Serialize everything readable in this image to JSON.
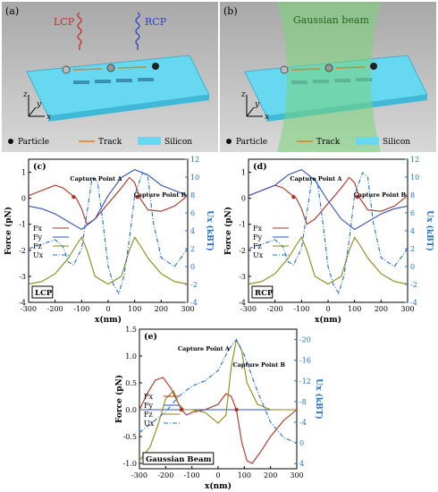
{
  "panel_a": {
    "tag": "(a)",
    "lcp_label": "LCP",
    "rcp_label": "RCP",
    "legend": {
      "particle": "Particle",
      "track": "Track",
      "silicon": "Silicon"
    },
    "axes": {
      "z": "z",
      "y": "y",
      "x": "x"
    }
  },
  "panel_b": {
    "tag": "(b)",
    "beam_label": "Gaussian beam",
    "legend": {
      "particle": "Particle",
      "track": "Track",
      "silicon": "Silicon"
    },
    "axes": {
      "z": "z",
      "y": "y",
      "x": "x"
    }
  },
  "colors": {
    "silicon": "#66d8f0",
    "fx": "#b03020",
    "fy": "#3050c0",
    "fz": "#8a8a10",
    "ux": "#2070d0",
    "lcp": "#c03030",
    "rcp": "#3040c0",
    "beam": "#7ad67a",
    "track": "#e08020"
  },
  "chart_data": [
    {
      "type": "line",
      "tag": "(c)",
      "badge": "LCP",
      "xlabel": "x(nm)",
      "ylabel": "Force (pN)",
      "y2label": "Ux (kBT)",
      "xlim": [
        -300,
        300
      ],
      "ylim": [
        -4,
        1.5
      ],
      "y2lim": [
        12,
        -4
      ],
      "xticks": [
        -300,
        -200,
        -100,
        0,
        100,
        200,
        300
      ],
      "yticks": [
        -4,
        -3,
        -2,
        -1,
        0,
        1
      ],
      "y2ticks": [
        -4,
        -2,
        0,
        2,
        4,
        6,
        8,
        10,
        12
      ],
      "annotations": [
        {
          "text": "Capture Point A",
          "x": -130,
          "y": 0.05
        },
        {
          "text": "Capture Point B",
          "x": 110,
          "y": 0.05
        }
      ],
      "series": [
        {
          "name": "Fx",
          "axis": "left",
          "x": [
            -300,
            -250,
            -200,
            -170,
            -140,
            -120,
            -100,
            -80,
            -50,
            0,
            50,
            80,
            100,
            120,
            150,
            200,
            250,
            300
          ],
          "values": [
            0.1,
            0.3,
            0.5,
            0.4,
            0.15,
            0.0,
            -0.4,
            -1.0,
            -0.8,
            -0.2,
            0.4,
            0.8,
            0.6,
            0.0,
            -0.45,
            -0.5,
            -0.3,
            0.1
          ]
        },
        {
          "name": "Fy",
          "axis": "left",
          "x": [
            -300,
            -250,
            -200,
            -150,
            -100,
            -50,
            0,
            50,
            100,
            150,
            200,
            250,
            300
          ],
          "values": [
            -0.3,
            -0.4,
            -0.6,
            -0.9,
            -1.2,
            -0.8,
            0.1,
            0.8,
            1.1,
            0.9,
            0.5,
            0.3,
            0.1
          ]
        },
        {
          "name": "Fz",
          "axis": "left",
          "x": [
            -300,
            -250,
            -200,
            -150,
            -120,
            -100,
            -80,
            -50,
            0,
            50,
            80,
            100,
            120,
            150,
            200,
            250,
            300
          ],
          "values": [
            -3.3,
            -3.2,
            -2.9,
            -2.3,
            -1.8,
            -1.5,
            -2.0,
            -3.0,
            -3.3,
            -3.0,
            -2.0,
            -1.5,
            -1.8,
            -2.3,
            -2.9,
            -3.2,
            -3.3
          ]
        },
        {
          "name": "Ux",
          "axis": "right",
          "x": [
            -300,
            -250,
            -200,
            -170,
            -150,
            -130,
            -100,
            -80,
            -60,
            -40,
            -20,
            0,
            20,
            40,
            60,
            80,
            100,
            130,
            150,
            170,
            200,
            250,
            300
          ],
          "values": [
            2,
            2.5,
            3.0,
            2.2,
            0.5,
            0.2,
            2.0,
            6.0,
            10.0,
            9.5,
            5.0,
            0.0,
            -2.0,
            -3.0,
            -1.0,
            3.0,
            8.0,
            10.5,
            10.0,
            5.0,
            1.0,
            0.0,
            2
          ]
        }
      ]
    },
    {
      "type": "line",
      "tag": "(d)",
      "badge": "RCP",
      "xlabel": "x(nm)",
      "ylabel": "Force (pN)",
      "y2label": "Ux (kBT)",
      "xlim": [
        -300,
        300
      ],
      "ylim": [
        -4,
        1.5
      ],
      "y2lim": [
        12,
        -4
      ],
      "xticks": [
        -300,
        -200,
        -100,
        0,
        100,
        200,
        300
      ],
      "yticks": [
        -4,
        -3,
        -2,
        -1,
        0,
        1
      ],
      "y2ticks": [
        -4,
        -2,
        0,
        2,
        4,
        6,
        8,
        10,
        12
      ],
      "annotations": [
        {
          "text": "Capture Point A",
          "x": -130,
          "y": 0.05
        },
        {
          "text": "Capture Point B",
          "x": 110,
          "y": 0.05
        }
      ],
      "series": [
        {
          "name": "Fx",
          "axis": "left",
          "x": [
            -300,
            -250,
            -200,
            -170,
            -140,
            -120,
            -100,
            -80,
            -50,
            0,
            50,
            80,
            100,
            120,
            150,
            200,
            250,
            300
          ],
          "values": [
            0.1,
            0.3,
            0.5,
            0.4,
            0.15,
            0.0,
            -0.4,
            -1.0,
            -0.8,
            -0.2,
            0.4,
            0.8,
            0.6,
            0.0,
            -0.45,
            -0.5,
            -0.3,
            0.1
          ]
        },
        {
          "name": "Fy",
          "axis": "left",
          "x": [
            -300,
            -250,
            -200,
            -150,
            -100,
            -50,
            0,
            50,
            100,
            150,
            200,
            250,
            300
          ],
          "values": [
            0.1,
            0.3,
            0.5,
            0.9,
            1.1,
            0.7,
            -0.1,
            -0.8,
            -1.2,
            -0.9,
            -0.6,
            -0.4,
            -0.3
          ]
        },
        {
          "name": "Fz",
          "axis": "left",
          "x": [
            -300,
            -250,
            -200,
            -150,
            -120,
            -100,
            -80,
            -50,
            0,
            50,
            80,
            100,
            120,
            150,
            200,
            250,
            300
          ],
          "values": [
            -3.3,
            -3.2,
            -2.9,
            -2.3,
            -1.8,
            -1.5,
            -2.0,
            -3.0,
            -3.3,
            -3.0,
            -2.0,
            -1.5,
            -1.8,
            -2.3,
            -2.9,
            -3.2,
            -3.3
          ]
        },
        {
          "name": "Ux",
          "axis": "right",
          "x": [
            -300,
            -250,
            -200,
            -170,
            -150,
            -130,
            -100,
            -80,
            -60,
            -40,
            -20,
            0,
            20,
            40,
            60,
            80,
            100,
            130,
            150,
            170,
            200,
            250,
            300
          ],
          "values": [
            2,
            2.5,
            3.0,
            2.2,
            0.5,
            0.2,
            2.0,
            6.0,
            10.0,
            9.5,
            5.0,
            0.0,
            -2.0,
            -3.0,
            -1.0,
            3.0,
            8.0,
            10.5,
            10.0,
            5.0,
            1.0,
            0.0,
            2
          ]
        }
      ]
    },
    {
      "type": "line",
      "tag": "(e)",
      "badge": "Gaussian Beam",
      "xlabel": "x(nm)",
      "ylabel": "Force (pN)",
      "y2label": "Ux (kBT)",
      "xlim": [
        -300,
        300
      ],
      "ylim": [
        -1.1,
        1.5
      ],
      "y2lim": [
        -22,
        5
      ],
      "xticks": [
        -300,
        -200,
        -100,
        0,
        100,
        200,
        300
      ],
      "yticks": [
        -1.0,
        -0.5,
        0.0,
        0.5,
        1.0,
        1.5
      ],
      "y2ticks": [
        -20,
        -16,
        -12,
        -8,
        -4,
        0,
        4
      ],
      "annotations": [
        {
          "text": "Capture Point A",
          "x": -140,
          "y": 0.0
        },
        {
          "text": "Capture Point B",
          "x": 70,
          "y": 0.0
        }
      ],
      "series": [
        {
          "name": "Fx",
          "axis": "left",
          "x": [
            -300,
            -270,
            -240,
            -210,
            -180,
            -150,
            -140,
            -120,
            -100,
            -50,
            0,
            30,
            50,
            70,
            90,
            110,
            130,
            160,
            200,
            250,
            300
          ],
          "values": [
            0.0,
            0.3,
            0.55,
            0.6,
            0.4,
            0.1,
            0.0,
            -0.1,
            -0.05,
            0.0,
            0.1,
            0.3,
            0.25,
            0.0,
            -0.6,
            -0.95,
            -1.0,
            -0.8,
            -0.5,
            -0.2,
            0.0
          ]
        },
        {
          "name": "Fy",
          "axis": "left",
          "x": [
            -300,
            300
          ],
          "values": [
            0.0,
            0.0
          ]
        },
        {
          "name": "Fz",
          "axis": "left",
          "x": [
            -300,
            -260,
            -230,
            -200,
            -170,
            -150,
            -130,
            -100,
            -50,
            0,
            30,
            50,
            70,
            90,
            110,
            150,
            200,
            250,
            300
          ],
          "values": [
            -0.95,
            -0.7,
            -0.3,
            0.2,
            0.35,
            0.1,
            0.0,
            0.0,
            -0.05,
            -0.25,
            -0.1,
            0.8,
            1.3,
            1.1,
            0.5,
            0.1,
            0.0,
            0.0,
            0.0
          ]
        },
        {
          "name": "Ux",
          "axis": "right",
          "x": [
            -300,
            -250,
            -200,
            -150,
            -100,
            -50,
            0,
            40,
            70,
            100,
            150,
            200,
            250,
            300
          ],
          "values": [
            -2,
            -4,
            -6,
            -9,
            -11,
            -12,
            -14,
            -18,
            -20,
            -17,
            -10,
            -4,
            -1,
            0
          ]
        }
      ]
    }
  ]
}
